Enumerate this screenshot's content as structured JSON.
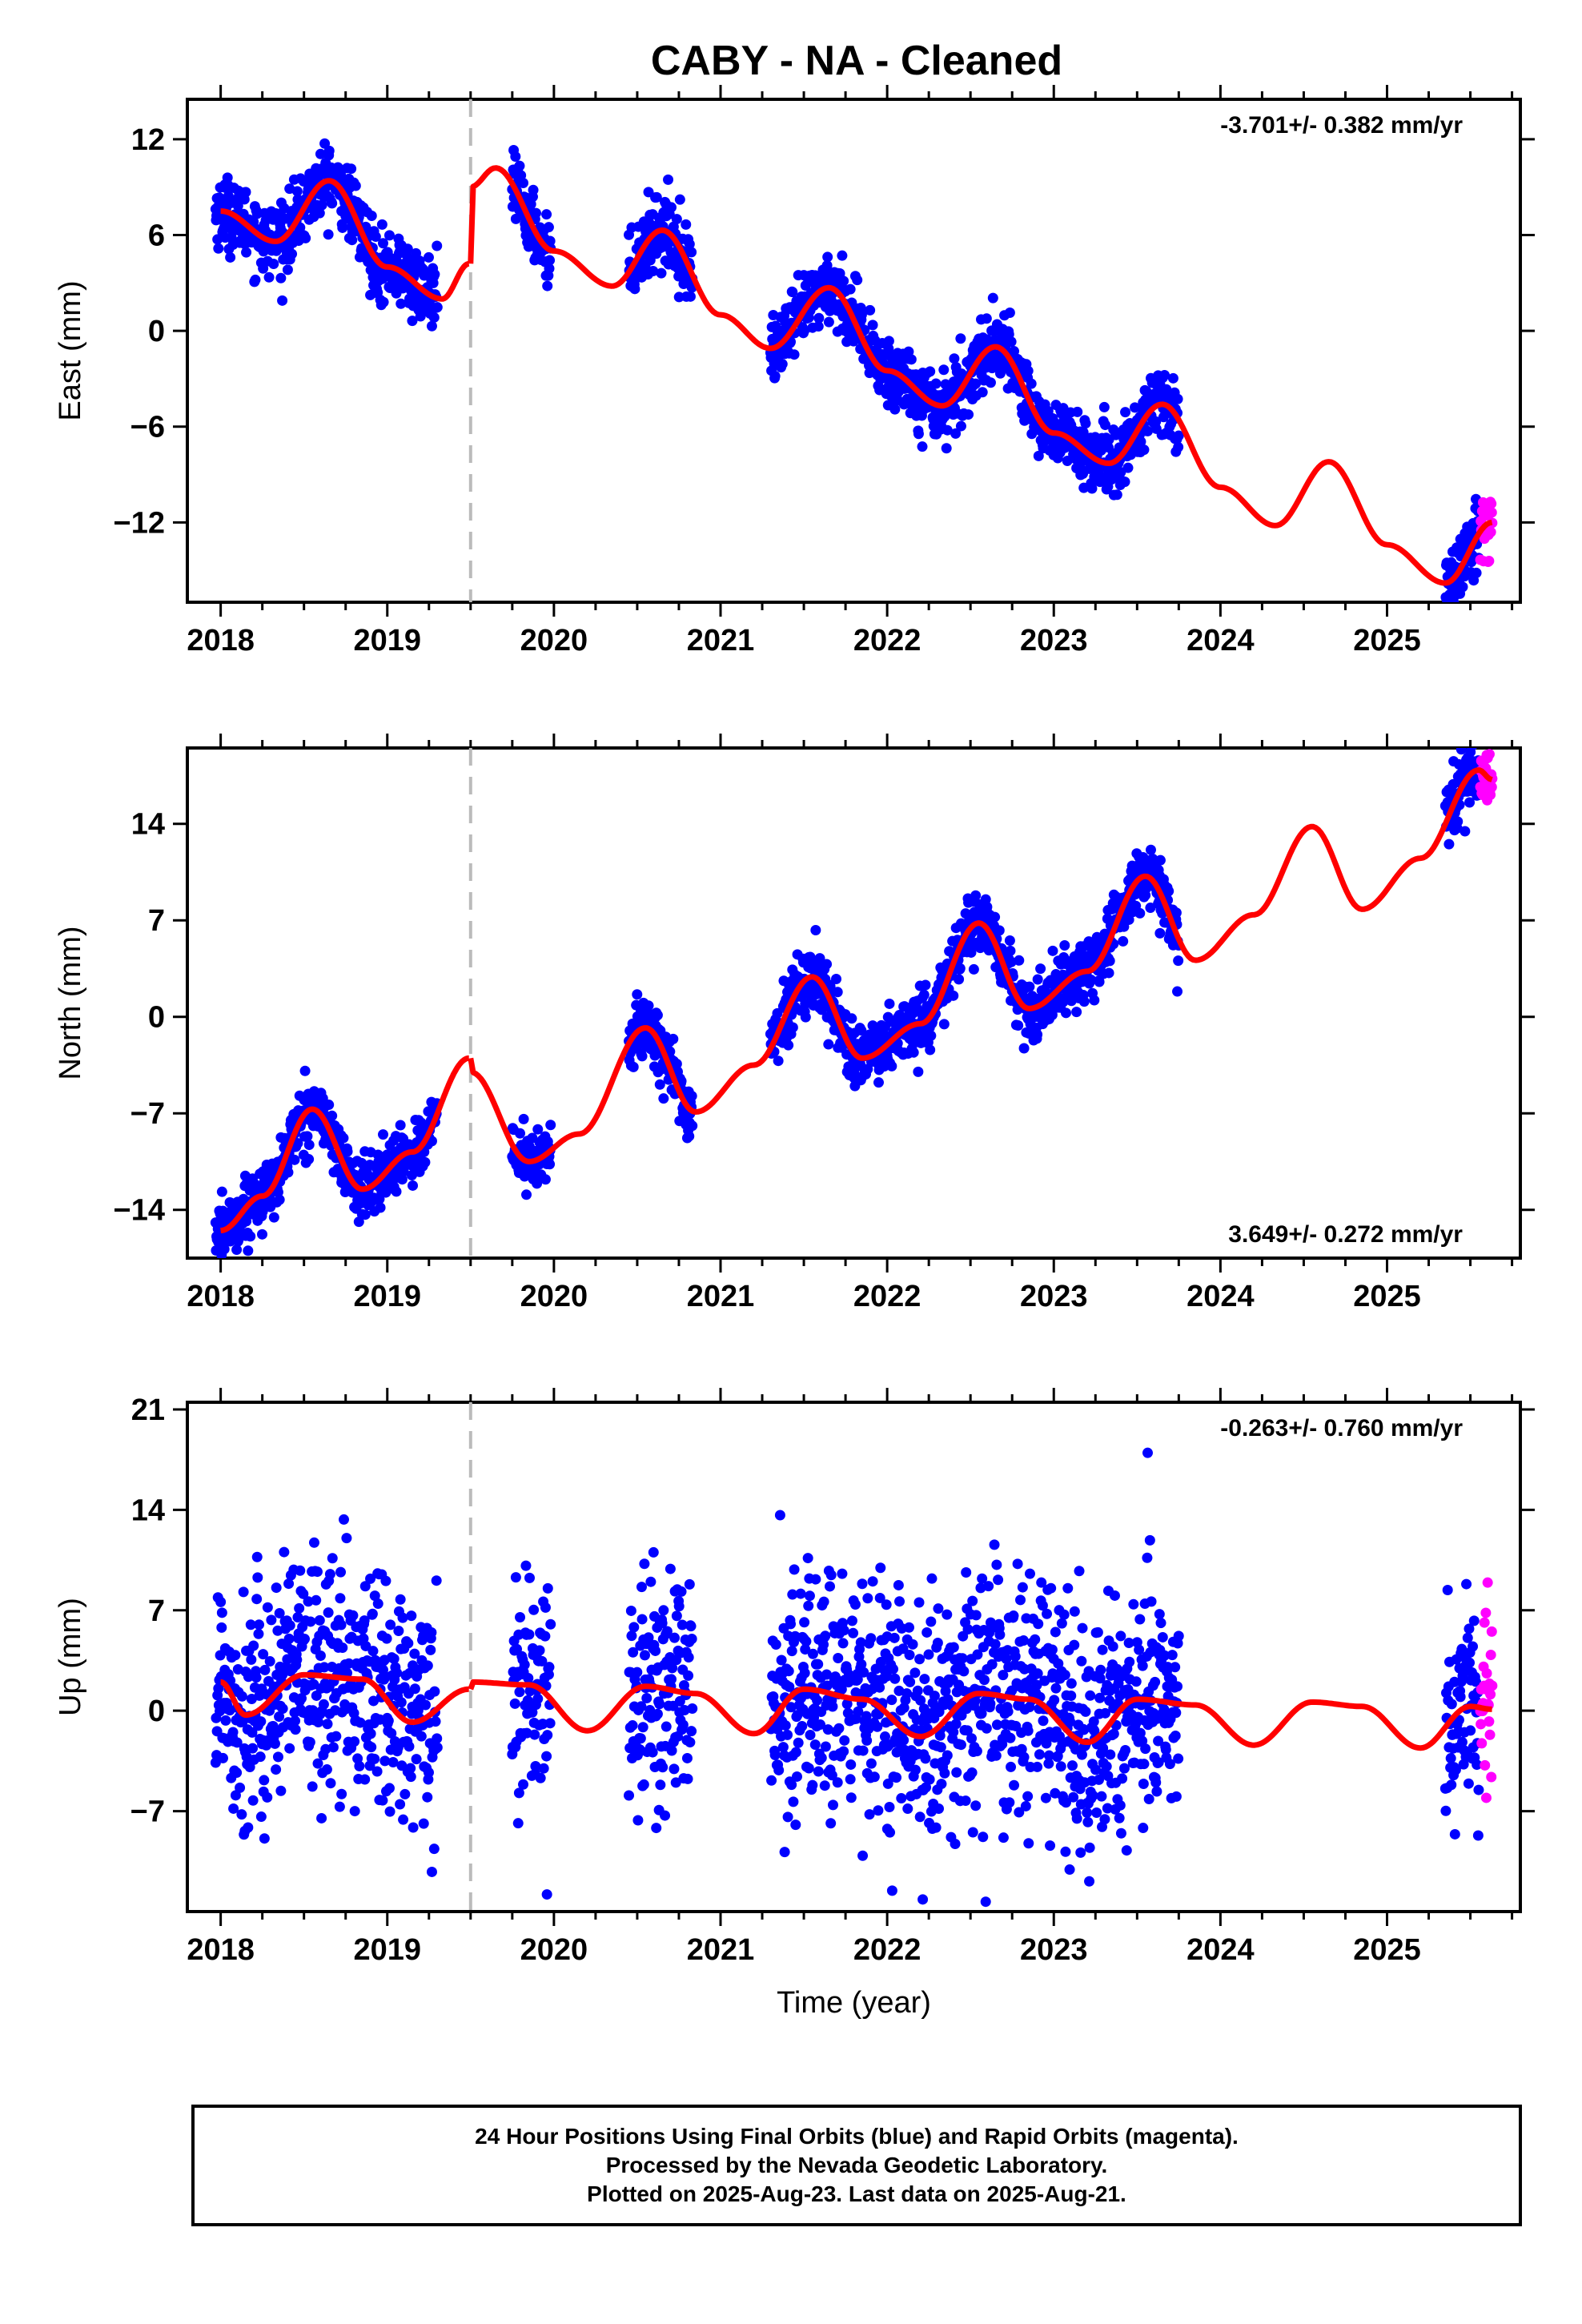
{
  "title": "CABY  - NA - Cleaned",
  "colors": {
    "final_orbits": "#0000ff",
    "rapid_orbits": "#ff00ff",
    "model": "#ff0000",
    "break_line": "#bbbbbb"
  },
  "chart_data": [
    {
      "type": "scatter",
      "component": "east",
      "ylabel": "East (mm)",
      "xlim": [
        2017.8,
        2025.8
      ],
      "ylim": [
        -17,
        14.5
      ],
      "yticks": [
        12,
        6,
        0,
        -6,
        -12
      ],
      "ytick_labels": [
        "12",
        "6",
        "0",
        "−6",
        "−12"
      ],
      "xticks": [
        2018,
        2019,
        2020,
        2021,
        2022,
        2023,
        2024,
        2025
      ],
      "xtick_labels": [
        "2018",
        "2019",
        "2020",
        "2021",
        "2022",
        "2023",
        "2024",
        "2025"
      ],
      "rate_label": "-3.701+/- 0.382 mm/yr",
      "rate_placement": "top-right",
      "break_line_x": 2019.5,
      "velocity_mm_per_yr": -3.701,
      "offset_at_2018": 5.7,
      "annual_amplitude": 2.3,
      "annual_phase": 0.85,
      "noise_sigma": 1.1,
      "data_segments": [
        [
          2017.97,
          2019.3
        ],
        [
          2019.75,
          2019.98
        ],
        [
          2020.45,
          2020.83
        ],
        [
          2021.3,
          2022.0
        ],
        [
          2022.0,
          2023.75
        ],
        [
          2025.35,
          2025.55
        ]
      ],
      "rapid_segment": [
        2025.56,
        2025.63
      ],
      "model_segments": [
        {
          "x": [
            2018.0,
            2018.33,
            2018.65,
            2019.0,
            2019.33,
            2019.49
          ],
          "y": [
            7.5,
            5.6,
            9.4,
            4.0,
            2.0,
            4.2
          ]
        },
        {
          "x": [
            2019.5,
            2019.65,
            2020.0,
            2020.35,
            2020.65,
            2021.0,
            2021.3,
            2021.65,
            2022.0,
            2022.33,
            2022.65,
            2023.0,
            2023.33,
            2023.65,
            2024.0,
            2024.33,
            2024.65,
            2025.0,
            2025.35,
            2025.63
          ],
          "y": [
            9.0,
            10.2,
            5.0,
            2.8,
            6.3,
            1.0,
            -1.1,
            2.7,
            -2.5,
            -4.7,
            -1.0,
            -6.4,
            -8.3,
            -4.6,
            -9.8,
            -12.2,
            -8.2,
            -13.4,
            -15.8,
            -12.0
          ]
        }
      ]
    },
    {
      "type": "scatter",
      "component": "north",
      "ylabel": "North (mm)",
      "xlim": [
        2017.8,
        2025.8
      ],
      "ylim": [
        -17.5,
        19.5
      ],
      "yticks": [
        14,
        7,
        0,
        -7,
        -14
      ],
      "ytick_labels": [
        "14",
        "7",
        "0",
        "−7",
        "−14"
      ],
      "xticks": [
        2018,
        2019,
        2020,
        2021,
        2022,
        2023,
        2024,
        2025
      ],
      "xtick_labels": [
        "2018",
        "2019",
        "2020",
        "2021",
        "2022",
        "2023",
        "2024",
        "2025"
      ],
      "rate_label": "3.649+/- 0.272 mm/yr",
      "rate_placement": "bottom-right",
      "break_line_x": 2019.5,
      "velocity_mm_per_yr": 3.649,
      "offset_at_2018": -13.5,
      "annual_amplitude": 3.5,
      "annual_phase": 0.35,
      "noise_sigma": 1.1,
      "data_segments": [
        [
          2017.97,
          2019.3
        ],
        [
          2019.75,
          2019.98
        ],
        [
          2020.45,
          2020.83
        ],
        [
          2021.3,
          2022.0
        ],
        [
          2022.0,
          2023.75
        ],
        [
          2025.35,
          2025.55
        ]
      ],
      "rapid_segment": [
        2025.56,
        2025.63
      ],
      "model_segments": [
        {
          "x": [
            2018.0,
            2018.25,
            2018.55,
            2018.85,
            2019.15,
            2019.49
          ],
          "y": [
            -15.5,
            -13.0,
            -6.7,
            -12.5,
            -9.8,
            -3.0
          ]
        },
        {
          "x": [
            2019.5,
            2019.85,
            2020.15,
            2020.55,
            2020.85,
            2021.2,
            2021.55,
            2021.85,
            2022.2,
            2022.55,
            2022.85,
            2023.2,
            2023.55,
            2023.85,
            2024.2,
            2024.55,
            2024.85,
            2025.2,
            2025.55,
            2025.63
          ],
          "y": [
            -4.0,
            -10.5,
            -8.5,
            -0.8,
            -6.9,
            -3.5,
            2.9,
            -3.0,
            -0.5,
            6.8,
            0.6,
            3.3,
            10.2,
            4.1,
            7.4,
            13.8,
            7.8,
            11.5,
            17.9,
            17.2
          ]
        }
      ]
    },
    {
      "type": "scatter",
      "component": "up",
      "ylabel": "Up (mm)",
      "xlabel": "Time (year)",
      "xlim": [
        2017.8,
        2025.8
      ],
      "ylim": [
        -14,
        21.5
      ],
      "yticks": [
        21,
        14,
        7,
        0,
        -7
      ],
      "ytick_labels": [
        "21",
        "14",
        "7",
        "0",
        "−7"
      ],
      "xticks": [
        2018,
        2019,
        2020,
        2021,
        2022,
        2023,
        2024,
        2025
      ],
      "xtick_labels": [
        "2018",
        "2019",
        "2020",
        "2021",
        "2022",
        "2023",
        "2024",
        "2025"
      ],
      "rate_label": "-0.263+/- 0.760 mm/yr",
      "rate_placement": "top-right",
      "break_line_x": 2019.5,
      "velocity_mm_per_yr": -0.263,
      "offset_at_2018": 1.0,
      "annual_amplitude": 1.0,
      "annual_phase": 0.5,
      "noise_sigma": 4.2,
      "data_segments": [
        [
          2017.97,
          2019.3
        ],
        [
          2019.75,
          2019.98
        ],
        [
          2020.45,
          2020.83
        ],
        [
          2021.3,
          2022.0
        ],
        [
          2022.0,
          2023.75
        ],
        [
          2025.35,
          2025.55
        ]
      ],
      "rapid_segment": [
        2025.56,
        2025.63
      ],
      "model_segments": [
        {
          "x": [
            2018.0,
            2018.15,
            2018.5,
            2018.85,
            2019.15,
            2019.49
          ],
          "y": [
            2.0,
            -0.3,
            2.5,
            2.2,
            -0.8,
            1.5
          ]
        },
        {
          "x": [
            2019.5,
            2019.85,
            2020.2,
            2020.55,
            2020.85,
            2021.2,
            2021.5,
            2021.85,
            2022.2,
            2022.55,
            2022.85,
            2023.2,
            2023.5,
            2023.85,
            2024.2,
            2024.55,
            2024.85,
            2025.2,
            2025.5,
            2025.63
          ],
          "y": [
            2.0,
            1.8,
            -1.4,
            1.7,
            1.2,
            -1.6,
            1.5,
            0.8,
            -1.8,
            1.2,
            0.8,
            -2.2,
            0.8,
            0.4,
            -2.4,
            0.6,
            0.3,
            -2.6,
            0.3,
            0.1
          ]
        }
      ]
    }
  ],
  "footer": {
    "line1": "24 Hour Positions Using Final Orbits (blue) and Rapid Orbits (magenta).",
    "line2": "Processed by the Nevada Geodetic Laboratory.",
    "line3": "Plotted on 2025-Aug-23. Last data on 2025-Aug-21."
  }
}
